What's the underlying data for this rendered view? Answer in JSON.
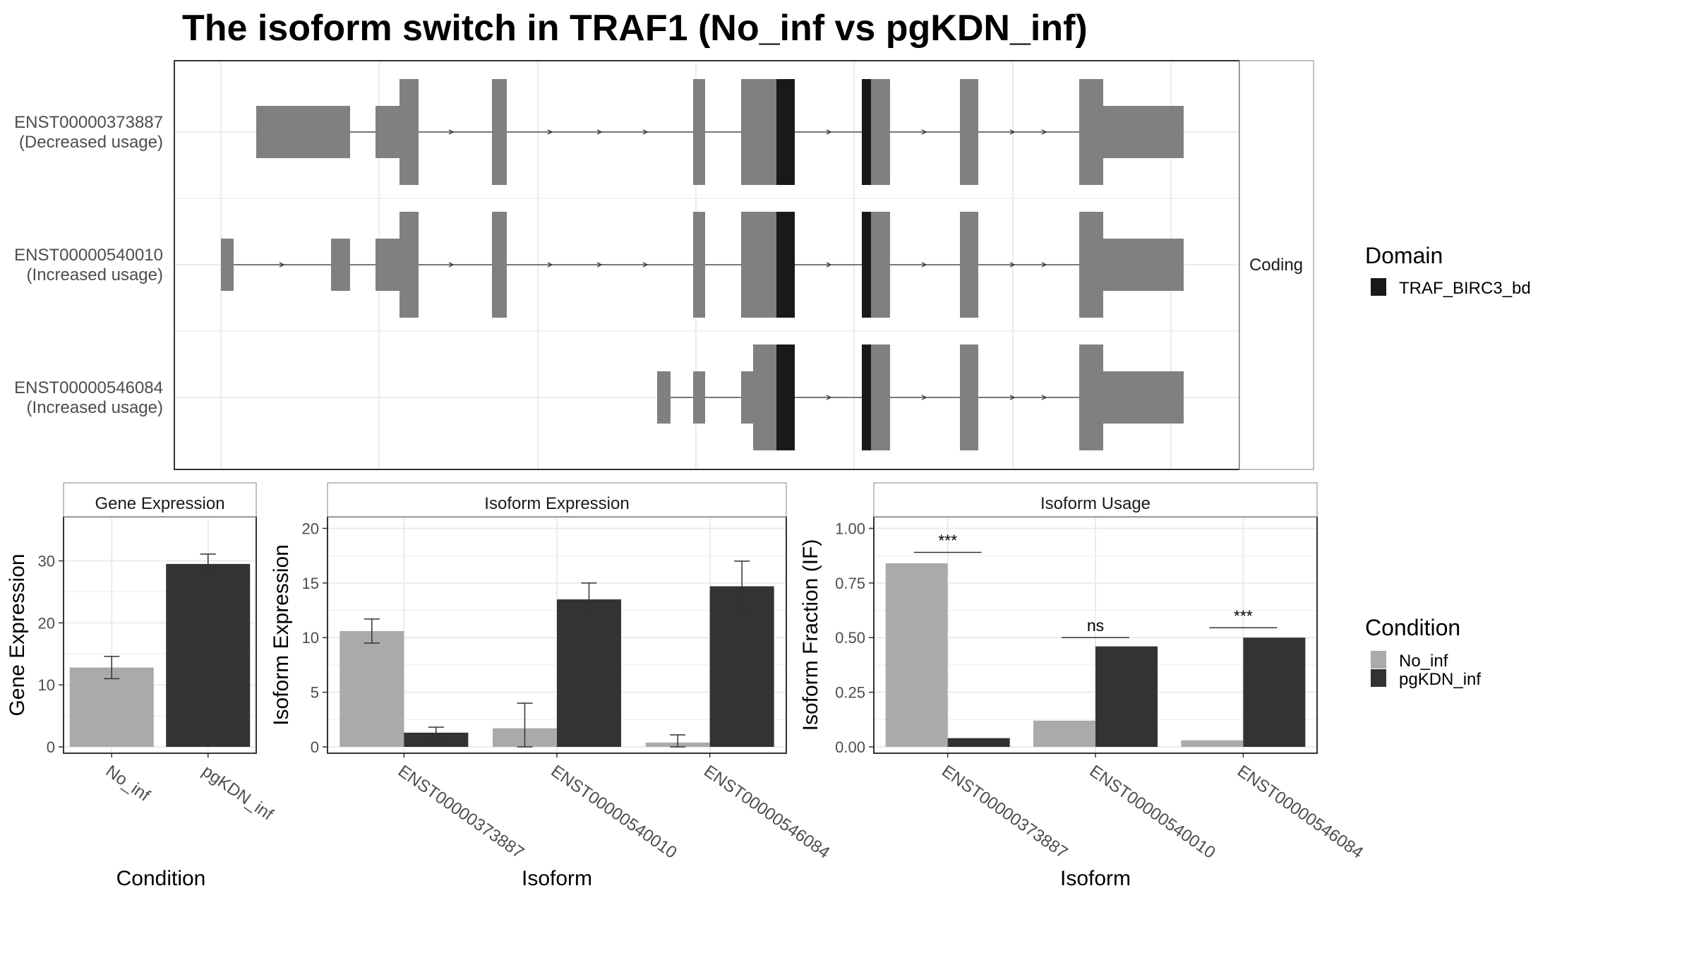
{
  "title": "The isoform switch in TRAF1 (No_inf vs pgKDN_inf)",
  "colors": {
    "no_inf": "#aaaaaa",
    "pgkdn_inf": "#333333",
    "exon": "#808080",
    "domain": "#191919",
    "panel_border": "#333333",
    "strip_border": "#999999",
    "grid": "#ebebeb"
  },
  "structure": {
    "facet_label": "Coding",
    "domain_legend": {
      "title": "Domain",
      "items": [
        {
          "label": "TRAF_BIRC3_bd",
          "color": "#191919"
        }
      ]
    },
    "transcripts": [
      {
        "id": "ENST00000373887",
        "usage": "(Decreased usage)"
      },
      {
        "id": "ENST00000540010",
        "usage": "(Increased usage)"
      },
      {
        "id": "ENST00000546084",
        "usage": "(Increased usage)"
      }
    ]
  },
  "condition_legend": {
    "title": "Condition",
    "items": [
      {
        "label": "No_inf",
        "color": "#aaaaaa"
      },
      {
        "label": "pgKDN_inf",
        "color": "#333333"
      }
    ]
  },
  "chart_data": [
    {
      "type": "bar",
      "title": "Gene Expression",
      "xlabel": "Condition",
      "ylabel": "Gene Expression",
      "ylim": [
        0,
        37
      ],
      "yticks": [
        0,
        10,
        20,
        30
      ],
      "categories": [
        "No_inf",
        "pgKDN_inf"
      ],
      "values": [
        12.8,
        29.5
      ],
      "error_low": [
        11.0,
        27.9
      ],
      "error_high": [
        14.6,
        31.1
      ],
      "colors": [
        "#aaaaaa",
        "#333333"
      ],
      "grid": true
    },
    {
      "type": "bar",
      "title": "Isoform Expression",
      "xlabel": "Isoform",
      "ylabel": "Isoform Expression",
      "ylim": [
        0,
        21
      ],
      "yticks": [
        0,
        5,
        10,
        15,
        20
      ],
      "categories": [
        "ENST00000373887",
        "ENST00000540010",
        "ENST00000546084"
      ],
      "series": [
        {
          "name": "No_inf",
          "values": [
            10.6,
            1.7,
            0.4
          ],
          "error_low": [
            9.5,
            0.0,
            0.0
          ],
          "error_high": [
            11.7,
            4.0,
            1.1
          ]
        },
        {
          "name": "pgKDN_inf",
          "values": [
            1.3,
            13.5,
            14.7
          ],
          "error_low": [
            0.8,
            12.0,
            12.5
          ],
          "error_high": [
            1.8,
            15.0,
            17.0
          ]
        }
      ],
      "grid": true
    },
    {
      "type": "bar",
      "title": "Isoform Usage",
      "xlabel": "Isoform",
      "ylabel": "Isoform Fraction (IF)",
      "ylim": [
        0,
        1.05
      ],
      "yticks": [
        "0.00",
        "0.25",
        "0.50",
        "0.75",
        "1.00"
      ],
      "categories": [
        "ENST00000373887",
        "ENST00000540010",
        "ENST00000546084"
      ],
      "series": [
        {
          "name": "No_inf",
          "values": [
            0.84,
            0.12,
            0.03
          ]
        },
        {
          "name": "pgKDN_inf",
          "values": [
            0.04,
            0.46,
            0.5
          ]
        }
      ],
      "significance": [
        {
          "label": "***",
          "y": 0.89
        },
        {
          "label": "ns",
          "y": 0.5
        },
        {
          "label": "***",
          "y": 0.545
        }
      ],
      "grid": true
    }
  ]
}
